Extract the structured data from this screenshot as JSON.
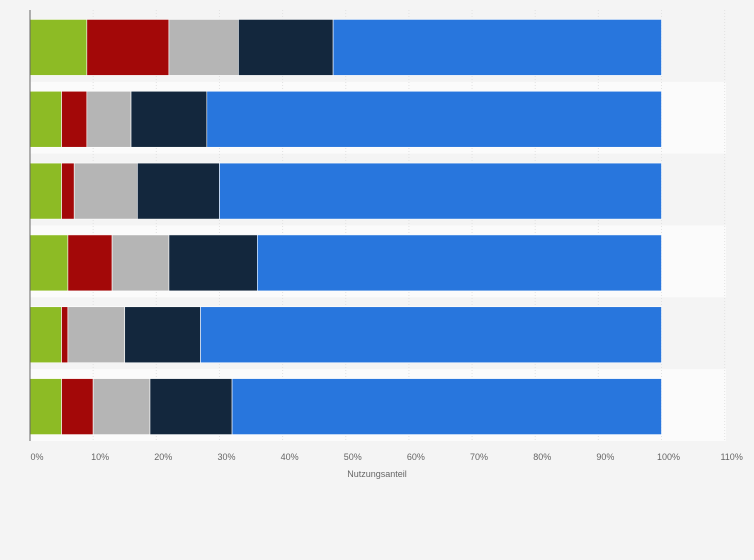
{
  "chart_data": {
    "type": "bar",
    "orientation": "horizontal",
    "stacked": true,
    "xlabel": "Nutzungsanteil",
    "xlim": [
      0,
      110
    ],
    "x_ticks": [
      "0%",
      "10%",
      "20%",
      "30%",
      "40%",
      "50%",
      "60%",
      "70%",
      "80%",
      "90%",
      "100%",
      "110%"
    ],
    "grid": true,
    "rows": 6,
    "series": [
      {
        "color": "#8dbb25",
        "values": [
          9,
          5,
          5,
          6,
          5,
          5
        ]
      },
      {
        "color": "#a30808",
        "values": [
          13,
          4,
          2,
          7,
          1,
          5
        ]
      },
      {
        "color": "#b5b5b5",
        "values": [
          11,
          7,
          10,
          9,
          9,
          9
        ]
      },
      {
        "color": "#13273d",
        "values": [
          15,
          12,
          13,
          14,
          12,
          13
        ]
      },
      {
        "color": "#2876dd",
        "values": [
          52,
          72,
          70,
          64,
          73,
          68
        ]
      }
    ]
  }
}
